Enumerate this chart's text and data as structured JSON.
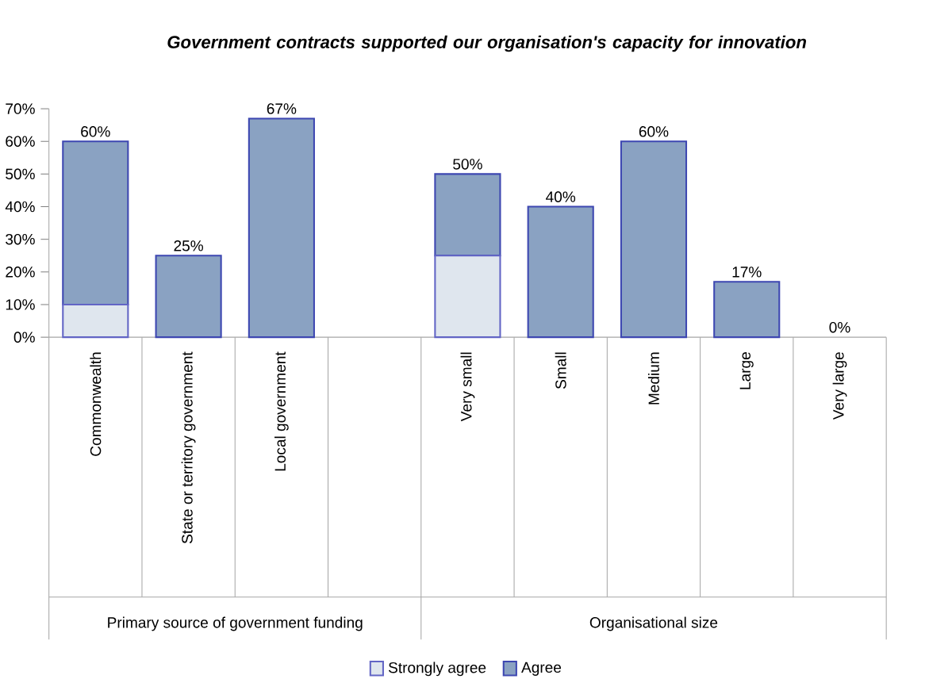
{
  "chart_data": {
    "type": "bar",
    "stacked": true,
    "title": "Government contracts supported our organisation's capacity for innovation",
    "categories": [
      "Commonwealth",
      "State or territory government",
      "Local government",
      null,
      "Very small",
      "Small",
      "Medium",
      "Large",
      "Very large"
    ],
    "series": [
      {
        "name": "Strongly agree",
        "color": "#dfe6ee",
        "values": [
          10,
          0,
          0,
          null,
          25,
          0,
          0,
          0,
          0
        ]
      },
      {
        "name": "Agree",
        "color": "#8aa2c2",
        "values": [
          50,
          25,
          67,
          null,
          25,
          40,
          60,
          17,
          0
        ]
      }
    ],
    "totals": [
      "60%",
      "25%",
      "67%",
      null,
      "50%",
      "40%",
      "60%",
      "17%",
      "0%"
    ],
    "ylim": [
      0,
      70
    ],
    "yticks": [
      {
        "value": 0,
        "label": "0%"
      },
      {
        "value": 10,
        "label": "10%"
      },
      {
        "value": 20,
        "label": "20%"
      },
      {
        "value": 30,
        "label": "30%"
      },
      {
        "value": 40,
        "label": "40%"
      },
      {
        "value": 50,
        "label": "50%"
      },
      {
        "value": 60,
        "label": "60%"
      },
      {
        "value": 70,
        "label": "70%"
      }
    ],
    "annotations": [
      "Primary source of government funding",
      "Organisational size"
    ],
    "legend": "bottom",
    "grid": false
  }
}
